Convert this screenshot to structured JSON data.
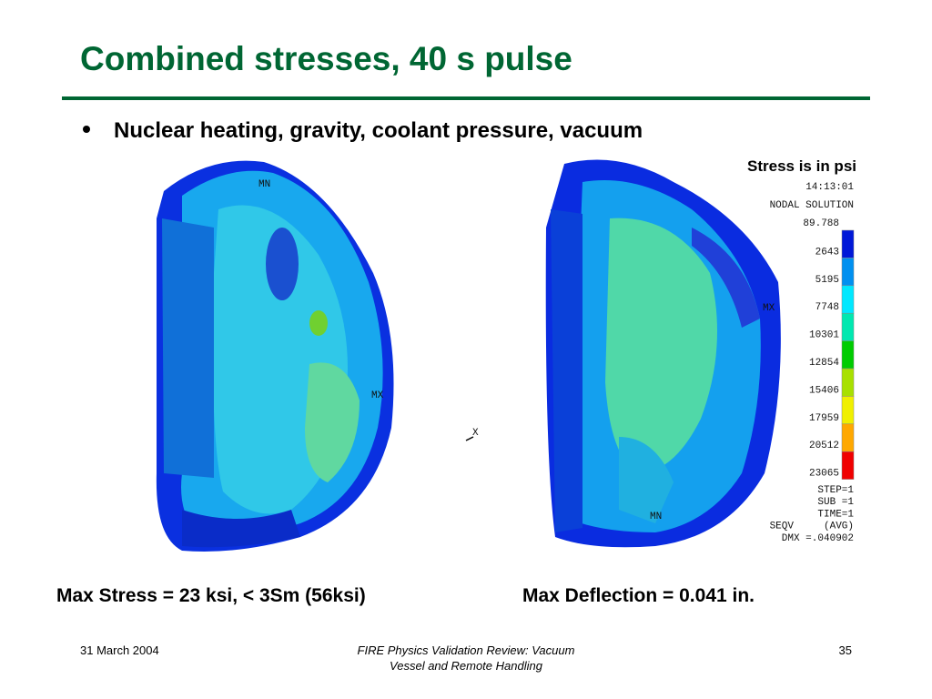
{
  "slide": {
    "title": "Combined stresses, 40 s pulse",
    "bullet": "Nuclear heating, gravity, coolant pressure, vacuum"
  },
  "figure": {
    "note": "Stress is in psi",
    "left_labels": [
      "MN",
      "MX"
    ],
    "axis_label": "X",
    "right_labels": [
      "MX",
      "MN"
    ]
  },
  "legend": {
    "time": "14:13:01",
    "heading": "NODAL SOLUTION",
    "levels": [
      89.788,
      2643,
      5195,
      7748,
      10301,
      12854,
      15406,
      17959,
      20512,
      23065
    ],
    "colors": [
      "#0018d8",
      "#0090f0",
      "#00e8ff",
      "#00e8b0",
      "#00cc00",
      "#a8e000",
      "#f0f000",
      "#ffa800",
      "#f00000"
    ],
    "info": [
      "STEP=1",
      "SUB =1",
      "TIME=1",
      "SEQV     (AVG)",
      "DMX =.040902"
    ]
  },
  "captions": [
    "Max Stress = 23 ksi, < 3Sm (56ksi)",
    "Max Deflection = 0.041 in."
  ],
  "footer": {
    "date": "31 March 2004",
    "center": [
      "FIRE Physics Validation Review: Vacuum",
      "Vessel and Remote Handling"
    ],
    "page": "35"
  }
}
